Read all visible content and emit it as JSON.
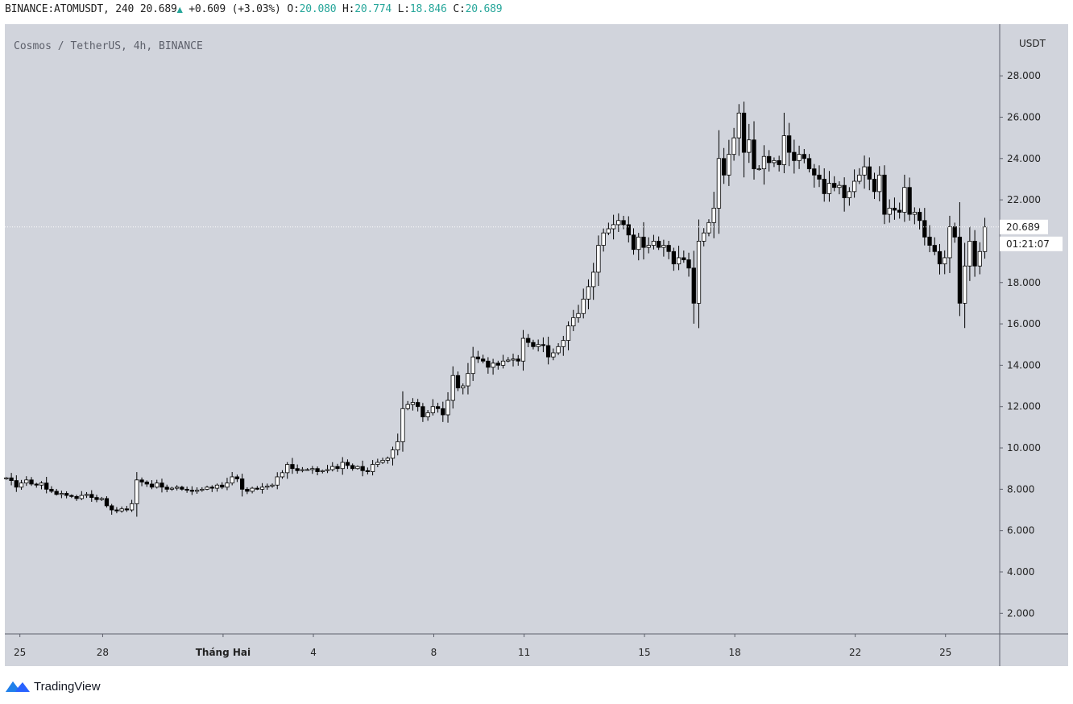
{
  "header": {
    "symbol": "BINANCE:ATOMUSDT, 240",
    "last": "20.689",
    "change": "+0.609",
    "change_pct": "(+3.03%)",
    "o_label": "O:",
    "o_value": "20.080",
    "h_label": "H:",
    "h_value": "20.774",
    "l_label": "L:",
    "l_value": "18.846",
    "c_label": "C:",
    "c_value": "20.689"
  },
  "brand": {
    "name": "TradingView",
    "icon": "tradingview-logo-icon"
  },
  "colors": {
    "background": "#d1d4dc",
    "up": "#ffffff",
    "down": "#000000",
    "accent": "#26a69a"
  },
  "chart_data": {
    "type": "candlestick",
    "title": "Cosmos / TetherUS, 4h, BINANCE",
    "currency_label": "USDT",
    "last_price_label": "20.689",
    "countdown_label": "01:21:07",
    "last_price": 20.689,
    "ylim": [
      1,
      30.5
    ],
    "y_ticks": [
      2,
      4,
      6,
      8,
      10,
      12,
      14,
      16,
      18,
      20,
      22,
      24,
      26,
      28
    ],
    "y_tick_labels": [
      "2.000",
      "4.000",
      "6.000",
      "8.000",
      "10.000",
      "12.000",
      "14.000",
      "16.000",
      "18.000",
      "20.000",
      "22.000",
      "24.000",
      "26.000",
      "28.000"
    ],
    "x_ticks": [
      {
        "label": "25",
        "day": 25.25,
        "bold": false
      },
      {
        "label": "28",
        "day": 28,
        "bold": false
      },
      {
        "label": "Tháng Hai",
        "day": 32,
        "bold": true
      },
      {
        "label": "4",
        "day": 35,
        "bold": false
      },
      {
        "label": "8",
        "day": 39,
        "bold": false
      },
      {
        "label": "11",
        "day": 42,
        "bold": false
      },
      {
        "label": "15",
        "day": 46,
        "bold": false
      },
      {
        "label": "18",
        "day": 49,
        "bold": false
      },
      {
        "label": "22",
        "day": 53,
        "bold": false
      },
      {
        "label": "25",
        "day": 56,
        "bold": false
      }
    ],
    "x_range_days": [
      24.75,
      57.8
    ],
    "candle_period_days": 0.1667,
    "first_candle_day": 24.8,
    "grid": false,
    "closes": [
      8.55,
      8.42,
      8.1,
      8.3,
      8.45,
      8.25,
      8.2,
      8.3,
      8.0,
      7.9,
      7.75,
      7.8,
      7.7,
      7.65,
      7.55,
      7.7,
      7.75,
      7.6,
      7.5,
      7.55,
      7.2,
      7.0,
      6.95,
      7.05,
      7.0,
      7.3,
      8.45,
      8.35,
      8.25,
      8.1,
      8.3,
      8.1,
      8.0,
      8.05,
      8.1,
      8.0,
      7.95,
      7.9,
      7.95,
      8.0,
      8.1,
      8.05,
      8.2,
      8.1,
      8.3,
      8.6,
      8.5,
      8.0,
      7.9,
      8.05,
      8.0,
      8.1,
      8.15,
      8.2,
      8.6,
      8.8,
      9.2,
      9.0,
      8.9,
      8.95,
      8.95,
      9.0,
      8.85,
      8.9,
      8.95,
      9.1,
      9.0,
      9.3,
      9.15,
      9.0,
      9.1,
      8.9,
      8.85,
      9.2,
      9.3,
      9.4,
      9.5,
      9.9,
      10.3,
      11.9,
      12.1,
      12.2,
      12.0,
      11.5,
      11.7,
      12.0,
      11.9,
      11.6,
      12.3,
      13.5,
      12.9,
      13.0,
      13.6,
      14.4,
      14.3,
      14.2,
      13.9,
      14.1,
      14.0,
      14.2,
      14.25,
      14.3,
      14.2,
      15.3,
      15.1,
      14.9,
      15.0,
      14.95,
      14.4,
      14.6,
      14.9,
      15.2,
      15.9,
      16.3,
      16.5,
      17.2,
      17.8,
      18.5,
      19.8,
      20.4,
      20.6,
      20.8,
      21.0,
      20.8,
      20.3,
      19.6,
      20.2,
      19.7,
      19.8,
      20.0,
      19.7,
      19.8,
      19.5,
      18.9,
      19.2,
      19.1,
      18.7,
      17.0,
      20.0,
      20.4,
      20.9,
      21.6,
      24.0,
      23.2,
      24.2,
      25.0,
      26.2,
      24.3,
      24.9,
      23.5,
      23.5,
      24.1,
      23.8,
      23.9,
      23.7,
      25.1,
      24.3,
      23.9,
      24.2,
      24.0,
      23.5,
      23.2,
      23.0,
      22.3,
      22.8,
      22.6,
      22.7,
      22.1,
      22.4,
      22.9,
      23.2,
      23.6,
      23.0,
      22.4,
      23.2,
      21.3,
      21.6,
      21.5,
      21.4,
      22.6,
      21.3,
      21.4,
      21.0,
      20.2,
      19.8,
      19.5,
      18.9,
      19.2,
      20.7,
      20.2,
      17.0,
      18.8,
      20.0,
      18.8,
      19.5,
      20.689
    ]
  }
}
